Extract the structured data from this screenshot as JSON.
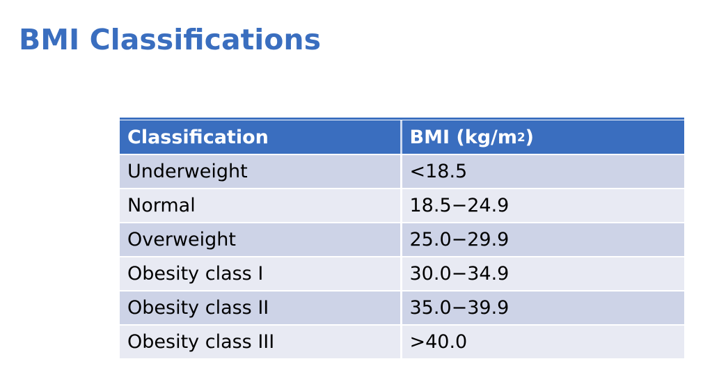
{
  "slide": {
    "title": "BMI Classifications"
  },
  "table": {
    "headers": {
      "classification": "Classification",
      "bmi_prefix": "BMI (kg/m",
      "bmi_sup": "2",
      "bmi_suffix": ")"
    },
    "rows": [
      {
        "classification": "Underweight",
        "bmi": "<18.5"
      },
      {
        "classification": "Normal",
        "bmi": "18.5−24.9"
      },
      {
        "classification": "Overweight",
        "bmi": "25.0−29.9"
      },
      {
        "classification": "Obesity class I",
        "bmi": "30.0−34.9"
      },
      {
        "classification": "Obesity class II",
        "bmi": "35.0−39.9"
      },
      {
        "classification": "Obesity class III",
        "bmi": ">40.0"
      }
    ]
  },
  "colors": {
    "accent_blue": "#3A6EBF",
    "row_dark": "#CDD3E7",
    "row_light": "#E8EAF3",
    "header_text": "#FFFFFF",
    "body_text": "#000000"
  }
}
